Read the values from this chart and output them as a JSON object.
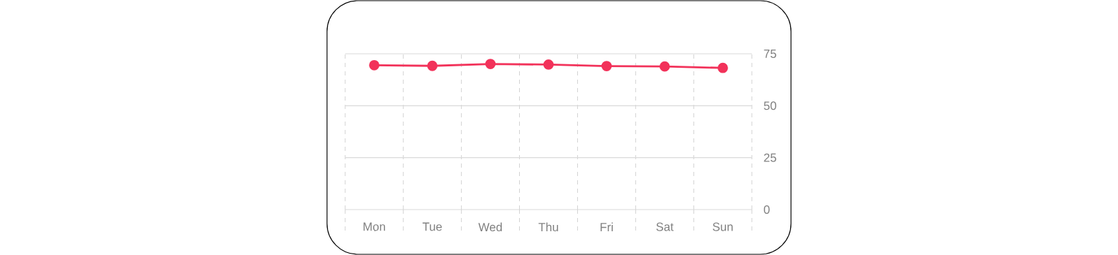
{
  "chart_data": {
    "type": "line",
    "categories": [
      "Mon",
      "Tue",
      "Wed",
      "Thu",
      "Fri",
      "Sat",
      "Sun"
    ],
    "series": [
      {
        "color": "#f2325a",
        "values": [
          69.5,
          69.2,
          70.1,
          69.8,
          69.1,
          68.9,
          68.2
        ]
      }
    ],
    "ylim": [
      0,
      75
    ],
    "yticks": [
      0,
      25,
      50,
      75
    ],
    "grid": true,
    "marker": "circle",
    "line_style": "solid"
  }
}
